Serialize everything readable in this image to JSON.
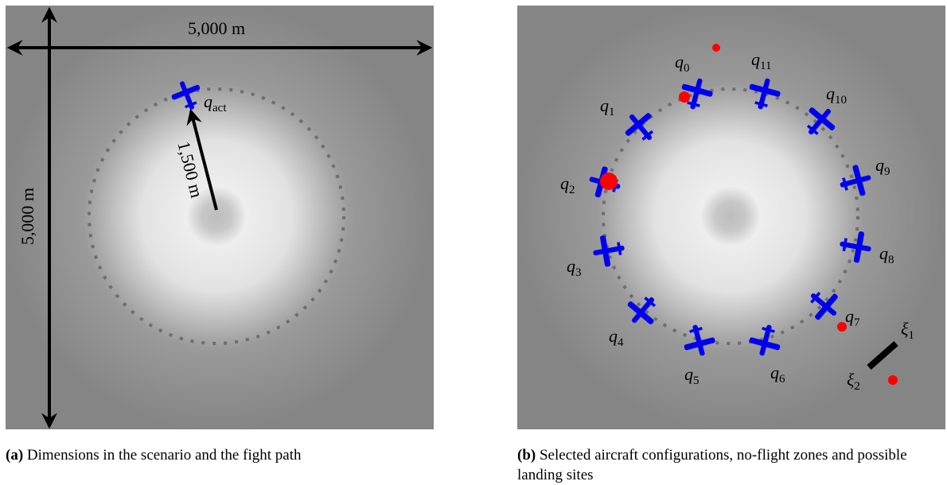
{
  "panels": [
    {
      "dimensions": {
        "width": "5,000 m",
        "height": "5,000 m",
        "radius": "1,500 m"
      },
      "aircraft_label": {
        "base": "q",
        "subscript": "act"
      },
      "caption": {
        "tag": "(a)",
        "text": "Dimensions in the scenario and the fight path"
      }
    },
    {
      "configurations": [
        {
          "base": "q",
          "subscript": "0"
        },
        {
          "base": "q",
          "subscript": "1"
        },
        {
          "base": "q",
          "subscript": "2"
        },
        {
          "base": "q",
          "subscript": "3"
        },
        {
          "base": "q",
          "subscript": "4"
        },
        {
          "base": "q",
          "subscript": "5"
        },
        {
          "base": "q",
          "subscript": "6"
        },
        {
          "base": "q",
          "subscript": "7"
        },
        {
          "base": "q",
          "subscript": "8"
        },
        {
          "base": "q",
          "subscript": "9"
        },
        {
          "base": "q",
          "subscript": "10"
        },
        {
          "base": "q",
          "subscript": "11"
        }
      ],
      "landing_site_labels": [
        {
          "base": "ξ",
          "subscript": "1"
        },
        {
          "base": "ξ",
          "subscript": "2"
        }
      ],
      "caption": {
        "tag": "(b)",
        "text": "Selected aircraft configurations, no-flight zones and possible landing sites"
      }
    }
  ]
}
